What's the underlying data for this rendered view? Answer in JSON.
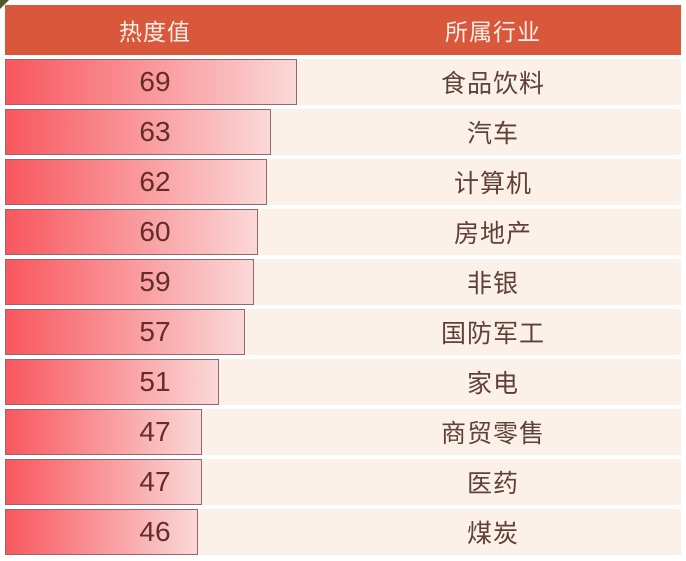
{
  "chart_data": {
    "type": "bar",
    "orientation": "horizontal",
    "headers": {
      "value_header": "热度值",
      "industry_header": "所属行业"
    },
    "categories": [
      "食品饮料",
      "汽车",
      "计算机",
      "房地产",
      "非银",
      "国防军工",
      "家电",
      "商贸零售",
      "医药",
      "煤炭"
    ],
    "values": [
      69,
      63,
      62,
      60,
      59,
      57,
      51,
      47,
      47,
      46
    ],
    "xlim": [
      0,
      70
    ],
    "grid": false,
    "legend": false
  },
  "colors": {
    "header_bg": "#D9573A",
    "header_text": "#FCEFE7",
    "row_bg": "#FCF1E8",
    "bar_start": "#F8575E",
    "bar_end": "#FBD8D8",
    "bar_border": "#96686D",
    "value_text": "#632E28",
    "industry_text": "#5E4138",
    "corner_green": "#4C5A2A"
  }
}
